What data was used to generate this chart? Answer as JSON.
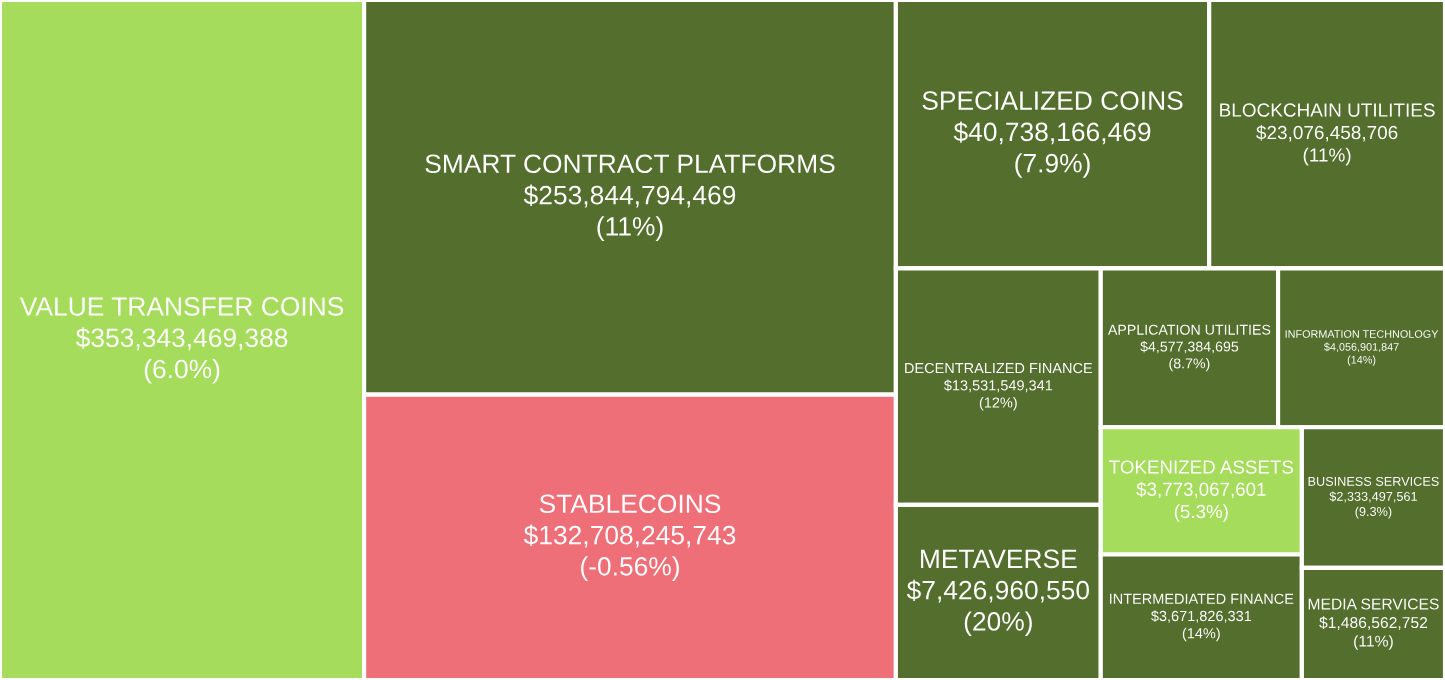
{
  "chart_data": {
    "type": "other",
    "categories": [
      "VALUE TRANSFER COINS",
      "SMART CONTRACT PLATFORMS",
      "STABLECOINS",
      "SPECIALIZED COINS",
      "BLOCKCHAIN UTILITIES",
      "DECENTRALIZED FINANCE",
      "METAVERSE",
      "APPLICATION UTILITIES",
      "INFORMATION TECHNOLOGY",
      "TOKENIZED ASSETS",
      "INTERMEDIATED FINANCE",
      "BUSINESS SERVICES",
      "MEDIA SERVICES"
    ],
    "values": [
      353343469388,
      253844794469,
      132708245743,
      40738166469,
      23076458706,
      13531549341,
      7426960550,
      4577384695,
      4056901847,
      3773067601,
      3671826331,
      2333497561,
      1486562752
    ],
    "value_labels": [
      "$353,343,469,388\n(6.0%)",
      "$253,844,794,469\n(11%)",
      "$132,708,245,743\n(-0.56%)",
      "$40,738,166,469\n(7.9%)",
      "$23,076,458,706\n(11%)",
      "$13,531,549,341\n(12%)",
      "$7,426,960,550\n(20%)",
      "$4,577,384,695\n(8.7%)",
      "$4,056,901,847\n(14%)",
      "$3,773,067,601\n(5.3%)",
      "$3,671,826,331\n(14%)",
      "$2,333,497,561\n(9.3%)",
      "$1,486,562,752\n(11%)"
    ],
    "colors": [
      "#a6dc5c",
      "#546e2e",
      "#ef6f78",
      "#546e2e",
      "#546e2e",
      "#546e2e",
      "#546e2e",
      "#546e2e",
      "#546e2e",
      "#a6dc5c",
      "#546e2e",
      "#546e2e",
      "#546e2e"
    ]
  }
}
